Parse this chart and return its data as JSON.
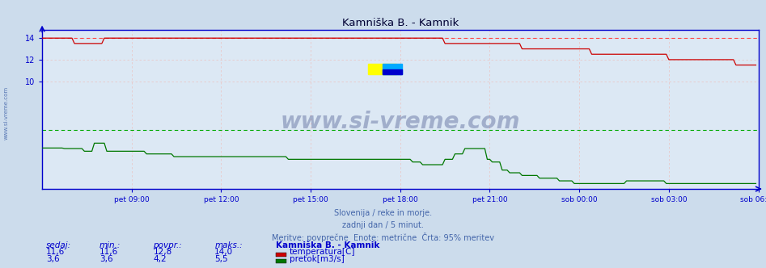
{
  "title": "Kamniška B. - Kamnik",
  "bg_color": "#ccdcec",
  "plot_bg_color": "#dce8f4",
  "axis_color": "#0000cc",
  "tick_color": "#0000cc",
  "title_color": "#000033",
  "subtitle_lines": [
    "Slovenija / reke in morje.",
    "zadnji dan / 5 minut.",
    "Meritve: povprečne  Enote: metrične  Črta: 95% meritev"
  ],
  "subtitle_color": "#4466aa",
  "legend_header": "Kamniška B. - Kamnik",
  "legend_items": [
    {
      "label": "temperatura[C]",
      "color": "#cc0000"
    },
    {
      "label": "pretok[m3/s]",
      "color": "#007700"
    }
  ],
  "stats_headers": [
    "sedaj:",
    "min.:",
    "povpr.:",
    "maks.:"
  ],
  "stats_rows": [
    [
      "11,6",
      "11,6",
      "12,8",
      "14,0"
    ],
    [
      "3,6",
      "3,6",
      "4,2",
      "5,5"
    ]
  ],
  "xticklabels": [
    "pet 09:00",
    "pet 12:00",
    "pet 15:00",
    "pet 18:00",
    "pet 21:00",
    "sob 00:00",
    "sob 03:00",
    "sob 06:00"
  ],
  "temp_max_line": 14.0,
  "flow_avg_line": 5.5,
  "watermark": "www.si-vreme.com",
  "watermark_color": "#000066",
  "n_points": 288,
  "ylim": [
    0,
    14.8
  ],
  "ytick_vals": [
    10,
    12,
    14
  ],
  "temp_color": "#cc0000",
  "flow_color": "#007700",
  "grid_color": "#e8c8c8",
  "dashed_temp_color": "#ff4444",
  "dashed_flow_color": "#00aa00"
}
